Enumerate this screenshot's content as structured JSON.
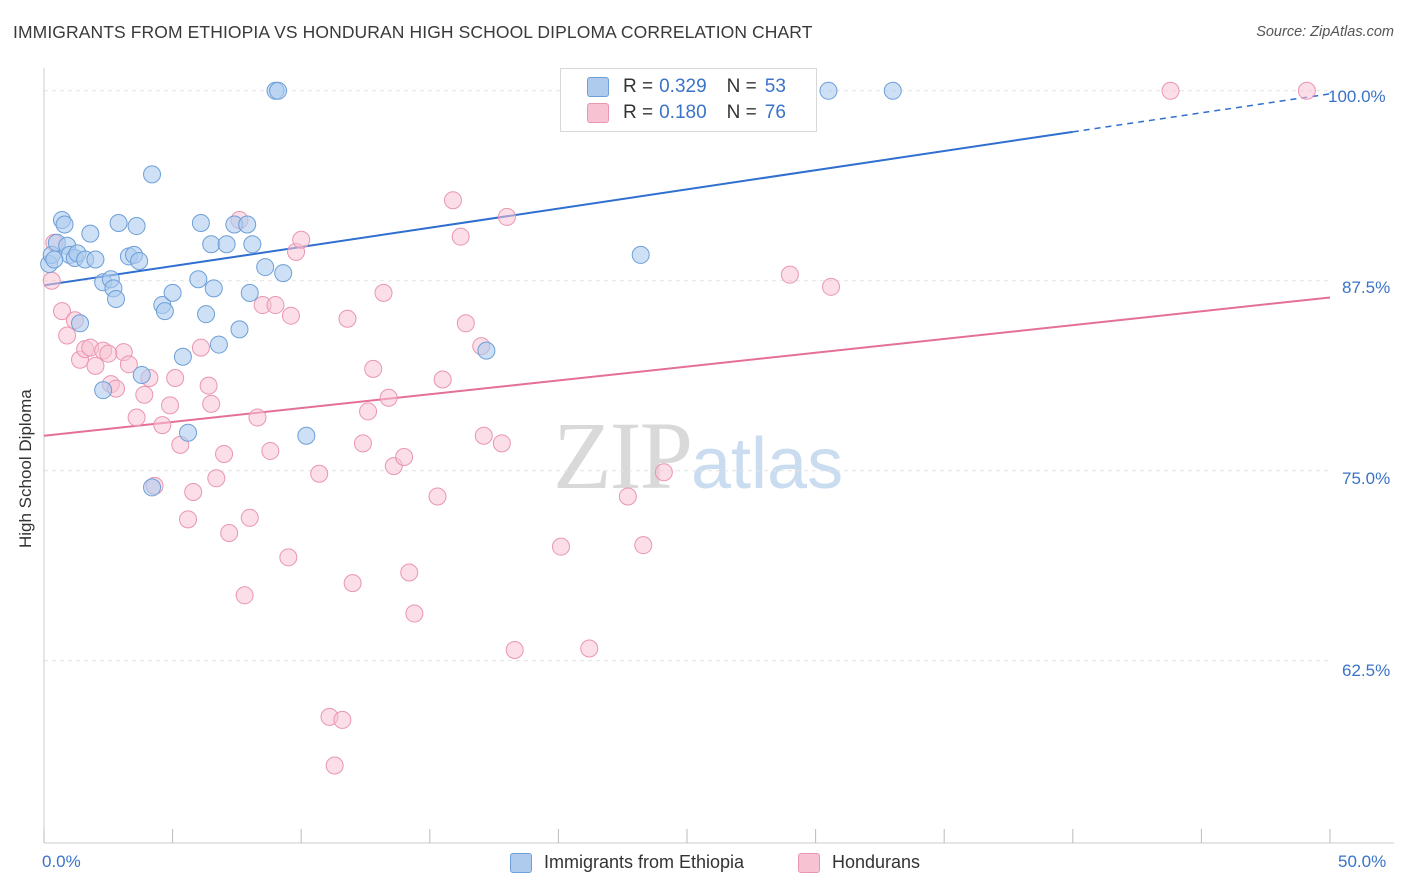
{
  "title": "IMMIGRANTS FROM ETHIOPIA VS HONDURAN HIGH SCHOOL DIPLOMA CORRELATION CHART",
  "source": "Source: ZipAtlas.com",
  "watermark": {
    "zip": "ZIP",
    "atlas": "atlas"
  },
  "legend": [
    {
      "r_label": "R =",
      "r_value": "0.329",
      "n_label": "N =",
      "n_value": "53"
    },
    {
      "r_label": "R =",
      "r_value": "0.180",
      "n_label": "N =",
      "n_value": "76"
    }
  ],
  "bottom_legend": [
    "Immigrants from Ethiopia",
    "Hondurans"
  ],
  "colors": {
    "blue_fill": "#aecbee",
    "blue_stroke": "#6d9fd8",
    "blue_line": "#2f6fcf",
    "pink_fill": "#f7c3d3",
    "pink_stroke": "#e996b1",
    "pink_line": "#e46f99",
    "axis_label": "#3a73c7",
    "grid": "#e3e3e3"
  },
  "chart_data": {
    "type": "scatter",
    "title": "IMMIGRANTS FROM ETHIOPIA VS HONDURAN HIGH SCHOOL DIPLOMA CORRELATION CHART",
    "xlabel": "",
    "ylabel": "High School Diploma",
    "xlim": [
      0,
      50
    ],
    "ylim": [
      50.5,
      101.5
    ],
    "x_tick_labels": [
      "0.0%",
      "50.0%"
    ],
    "y_ticks": [
      62.5,
      75.0,
      87.5,
      100.0
    ],
    "y_tick_labels": [
      "62.5%",
      "75.0%",
      "87.5%",
      "100.0%"
    ],
    "grid": "horizontal dashed",
    "legend_position": "top-center",
    "series": [
      {
        "name": "Immigrants from Ethiopia",
        "r": 0.329,
        "n": 53,
        "trend": {
          "x0": 0,
          "y0": 87.2,
          "x1": 40,
          "y1": 97.3,
          "dashed_to_x": 50,
          "dashed_to_y": 99.8
        },
        "points": [
          [
            0.2,
            88.6
          ],
          [
            0.3,
            89.2
          ],
          [
            0.5,
            90.0
          ],
          [
            0.7,
            91.5
          ],
          [
            0.8,
            91.2
          ],
          [
            0.9,
            89.8
          ],
          [
            1.0,
            89.2
          ],
          [
            1.2,
            89.0
          ],
          [
            1.3,
            89.3
          ],
          [
            1.6,
            88.9
          ],
          [
            1.8,
            90.6
          ],
          [
            2.0,
            88.9
          ],
          [
            2.3,
            87.4
          ],
          [
            2.6,
            87.6
          ],
          [
            2.7,
            87.0
          ],
          [
            2.8,
            86.3
          ],
          [
            2.9,
            91.3
          ],
          [
            3.3,
            89.1
          ],
          [
            3.5,
            89.2
          ],
          [
            3.6,
            91.1
          ],
          [
            3.7,
            88.8
          ],
          [
            4.2,
            94.5
          ],
          [
            4.6,
            85.9
          ],
          [
            4.7,
            85.5
          ],
          [
            5.0,
            86.7
          ],
          [
            5.4,
            82.5
          ],
          [
            5.6,
            77.5
          ],
          [
            6.0,
            87.6
          ],
          [
            6.1,
            91.3
          ],
          [
            6.3,
            85.3
          ],
          [
            6.5,
            89.9
          ],
          [
            6.6,
            87.0
          ],
          [
            6.8,
            83.3
          ],
          [
            7.1,
            89.9
          ],
          [
            7.4,
            91.2
          ],
          [
            7.6,
            84.3
          ],
          [
            7.9,
            91.2
          ],
          [
            8.0,
            86.7
          ],
          [
            8.1,
            89.9
          ],
          [
            8.6,
            88.4
          ],
          [
            9.0,
            100.0
          ],
          [
            9.1,
            100.0
          ],
          [
            9.3,
            88.0
          ],
          [
            10.2,
            77.3
          ],
          [
            17.2,
            82.9
          ],
          [
            23.2,
            89.2
          ],
          [
            30.5,
            100.0
          ],
          [
            33.0,
            100.0
          ],
          [
            1.4,
            84.7
          ],
          [
            2.3,
            80.3
          ],
          [
            3.8,
            81.3
          ],
          [
            4.2,
            73.9
          ],
          [
            0.4,
            88.9
          ]
        ]
      },
      {
        "name": "Hondurans",
        "r": 0.18,
        "n": 76,
        "trend": {
          "x0": 0,
          "y0": 77.3,
          "x1": 50,
          "y1": 86.4
        },
        "points": [
          [
            0.3,
            87.5
          ],
          [
            0.4,
            90.0
          ],
          [
            0.7,
            85.5
          ],
          [
            0.9,
            83.9
          ],
          [
            1.2,
            84.9
          ],
          [
            1.4,
            82.3
          ],
          [
            1.6,
            83.0
          ],
          [
            1.8,
            83.1
          ],
          [
            2.0,
            81.9
          ],
          [
            2.3,
            82.9
          ],
          [
            2.6,
            80.7
          ],
          [
            2.8,
            80.4
          ],
          [
            3.1,
            82.8
          ],
          [
            3.3,
            82.0
          ],
          [
            3.6,
            78.5
          ],
          [
            3.9,
            80.0
          ],
          [
            4.1,
            81.1
          ],
          [
            4.3,
            74.0
          ],
          [
            4.6,
            78.0
          ],
          [
            4.9,
            79.3
          ],
          [
            5.1,
            81.1
          ],
          [
            5.3,
            76.7
          ],
          [
            5.6,
            71.8
          ],
          [
            5.8,
            73.6
          ],
          [
            6.1,
            83.1
          ],
          [
            6.4,
            80.6
          ],
          [
            6.5,
            79.4
          ],
          [
            6.7,
            74.5
          ],
          [
            7.0,
            76.1
          ],
          [
            7.2,
            70.9
          ],
          [
            7.6,
            91.5
          ],
          [
            7.8,
            66.8
          ],
          [
            8.0,
            71.9
          ],
          [
            8.3,
            78.5
          ],
          [
            8.5,
            85.9
          ],
          [
            8.8,
            76.3
          ],
          [
            9.0,
            85.9
          ],
          [
            9.5,
            69.3
          ],
          [
            9.6,
            85.2
          ],
          [
            9.8,
            89.4
          ],
          [
            10.0,
            90.2
          ],
          [
            10.7,
            74.8
          ],
          [
            11.1,
            58.8
          ],
          [
            11.3,
            55.6
          ],
          [
            11.6,
            58.6
          ],
          [
            11.8,
            85.0
          ],
          [
            12.0,
            67.6
          ],
          [
            12.4,
            76.8
          ],
          [
            12.6,
            78.9
          ],
          [
            12.8,
            81.7
          ],
          [
            13.2,
            86.7
          ],
          [
            13.4,
            79.8
          ],
          [
            13.6,
            75.3
          ],
          [
            14.0,
            75.9
          ],
          [
            14.2,
            68.3
          ],
          [
            14.4,
            65.6
          ],
          [
            15.3,
            73.3
          ],
          [
            15.5,
            81.0
          ],
          [
            15.9,
            92.8
          ],
          [
            16.2,
            90.4
          ],
          [
            16.4,
            84.7
          ],
          [
            17.0,
            83.2
          ],
          [
            17.1,
            77.3
          ],
          [
            17.8,
            76.8
          ],
          [
            18.0,
            91.7
          ],
          [
            18.3,
            63.2
          ],
          [
            20.1,
            70.0
          ],
          [
            21.2,
            63.3
          ],
          [
            22.7,
            73.3
          ],
          [
            23.3,
            70.1
          ],
          [
            24.1,
            74.9
          ],
          [
            29.0,
            87.9
          ],
          [
            30.6,
            87.1
          ],
          [
            43.8,
            100.0
          ],
          [
            49.1,
            100.0
          ],
          [
            2.5,
            82.7
          ]
        ]
      }
    ]
  }
}
